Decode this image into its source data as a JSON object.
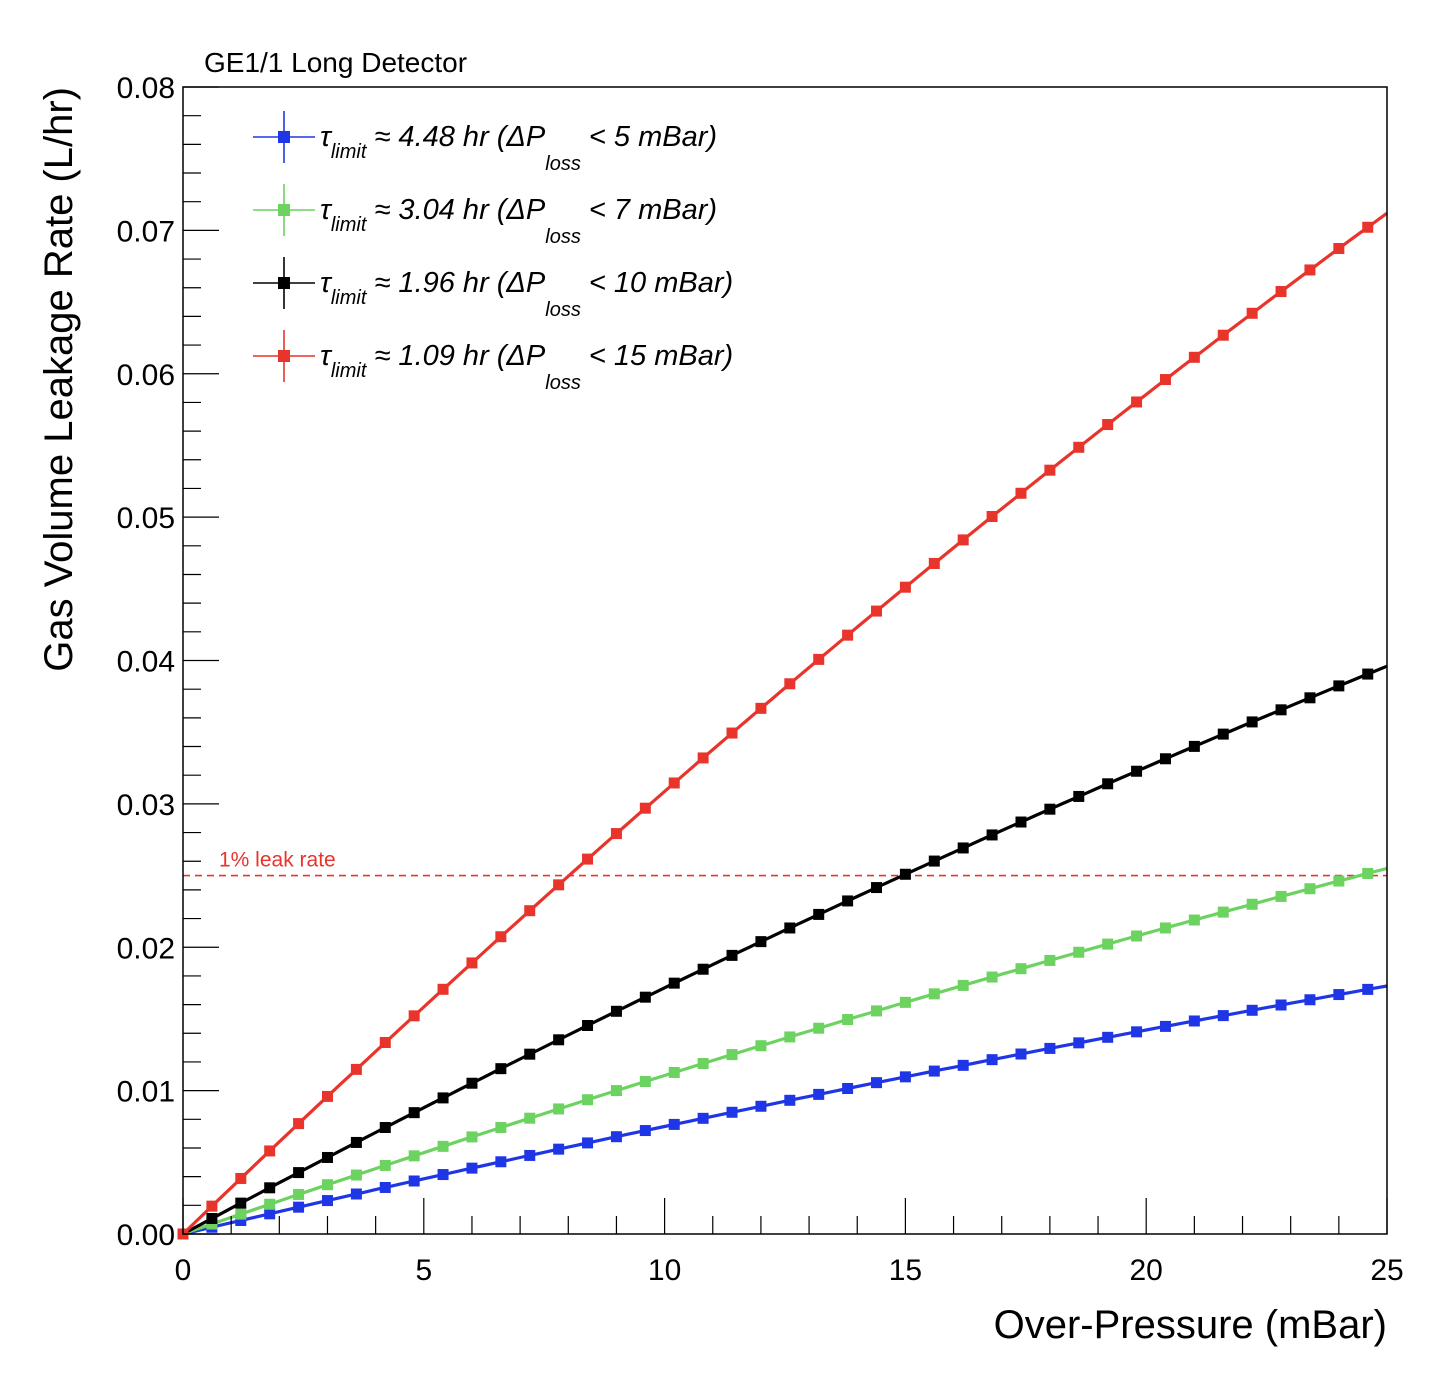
{
  "chart_data": {
    "type": "line",
    "header": "GE1/1 Long Detector",
    "xlabel": "Over-Pressure (mBar)",
    "ylabel": "Gas Volume Leakage Rate (L/hr)",
    "xlim": [
      0,
      25
    ],
    "ylim": [
      0,
      0.08
    ],
    "x_ticks": [
      "0",
      "5",
      "10",
      "15",
      "20",
      "25"
    ],
    "y_ticks": [
      "0.00",
      "0.01",
      "0.02",
      "0.03",
      "0.04",
      "0.05",
      "0.06",
      "0.07",
      "0.08"
    ],
    "grid": false,
    "legend_position": "top-left",
    "series": [
      {
        "name": "τlimit ≈ 4.48 hr (ΔPloss < 5 mBar)",
        "legend": {
          "pre": "τ",
          "sub1": "limit",
          "mid": " ≈ 4.48 hr (ΔP",
          "sub2": "loss",
          "post": " < 5 mBar)"
        },
        "color": "#1f36e6",
        "end_value": 0.0173,
        "curvature": 0.14
      },
      {
        "name": "τlimit ≈ 3.04 hr (ΔPloss < 7 mBar)",
        "legend": {
          "pre": "τ",
          "sub1": "limit",
          "mid": " ≈ 3.04 hr (ΔP",
          "sub2": "loss",
          "post": " < 7 mBar)"
        },
        "color": "#6cd260",
        "end_value": 0.0255,
        "curvature": 0.14
      },
      {
        "name": "τlimit ≈ 1.96 hr (ΔPloss < 10 mBar)",
        "legend": {
          "pre": "τ",
          "sub1": "limit",
          "mid": " ≈ 1.96 hr (ΔP",
          "sub2": "loss",
          "post": " < 10 mBar)"
        },
        "color": "#000000",
        "end_value": 0.0396,
        "curvature": 0.14
      },
      {
        "name": "τlimit ≈ 1.09 hr (ΔPloss < 15 mBar)",
        "legend": {
          "pre": "τ",
          "sub1": "limit",
          "mid": " ≈ 1.09 hr (ΔP",
          "sub2": "loss",
          "post": " < 15 mBar)"
        },
        "color": "#e8342b",
        "end_value": 0.0712,
        "curvature": 0.14
      }
    ],
    "n_points": 42,
    "x_step": 0.6,
    "reference_line": {
      "label": "1% leak rate",
      "y": 0.025,
      "color": "#e8342b",
      "style": "dashed"
    }
  }
}
